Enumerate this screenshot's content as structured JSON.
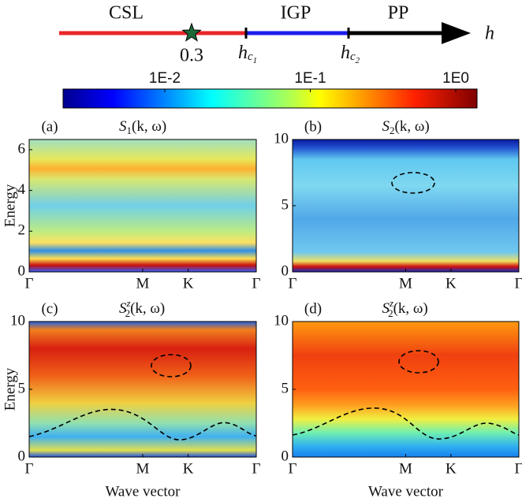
{
  "phase_diagram": {
    "segments": [
      {
        "label": "CSL",
        "color": "#e8262a"
      },
      {
        "label": "IGP",
        "color": "#1d1dee"
      },
      {
        "label": "PP",
        "color": "#000000"
      }
    ],
    "axis_label": "h",
    "marker_label": "0.3",
    "marker_color": "#1e6b3a",
    "boundaries": [
      [
        "h",
        "c",
        "1"
      ],
      [
        "h",
        "c",
        "2"
      ]
    ]
  },
  "chart_data": [
    {
      "type": "colorbar",
      "scale": "log",
      "xlim": [
        0.002,
        1.4
      ],
      "xticks": [
        {
          "value": 0.01,
          "label": "1E-2"
        },
        {
          "value": 0.1,
          "label": "1E-1"
        },
        {
          "value": 1,
          "label": "1E0"
        }
      ]
    },
    {
      "type": "heatmap",
      "panel_label": "(a)",
      "title": {
        "base": "S",
        "sub": "1",
        "args": "(k, ω)"
      },
      "ylabel": "Energy",
      "xlim": [
        0,
        1
      ],
      "xticks": [
        {
          "value": 0,
          "label": "Γ"
        },
        {
          "value": 0.5,
          "label": "M"
        },
        {
          "value": 0.7,
          "label": "K"
        },
        {
          "value": 1,
          "label": "Γ"
        }
      ],
      "ylim": [
        0,
        6.5
      ],
      "yticks": [
        0,
        2,
        4,
        6
      ]
    },
    {
      "type": "heatmap",
      "panel_label": "(b)",
      "title": {
        "base": "S",
        "sub": "2",
        "args": "(k, ω)"
      },
      "xlim": [
        0,
        1
      ],
      "xticks": [
        {
          "value": 0,
          "label": "Γ"
        },
        {
          "value": 0.5,
          "label": "M"
        },
        {
          "value": 0.7,
          "label": "K"
        },
        {
          "value": 1,
          "label": "Γ"
        }
      ],
      "ylim": [
        0,
        10
      ],
      "yticks": [
        0,
        5,
        10
      ]
    },
    {
      "type": "heatmap",
      "panel_label": "(c)",
      "title": {
        "base": "S",
        "sup": "z",
        "sub": "2",
        "args": "(k, ω)"
      },
      "ylabel": "Energy",
      "xlabel": "Wave vector",
      "xlim": [
        0,
        1
      ],
      "xticks": [
        {
          "value": 0,
          "label": "Γ"
        },
        {
          "value": 0.5,
          "label": "M"
        },
        {
          "value": 0.7,
          "label": "K"
        },
        {
          "value": 1,
          "label": "Γ"
        }
      ],
      "ylim": [
        0,
        10
      ],
      "yticks": [
        0,
        5,
        10
      ]
    },
    {
      "type": "heatmap",
      "panel_label": "(d)",
      "title": {
        "base": "S",
        "sup": "z",
        "sub": "2",
        "args": "(k, ω)"
      },
      "xlabel": "Wave vector",
      "xlim": [
        0,
        1
      ],
      "xticks": [
        {
          "value": 0,
          "label": "Γ"
        },
        {
          "value": 0.5,
          "label": "M"
        },
        {
          "value": 0.7,
          "label": "K"
        },
        {
          "value": 1,
          "label": "Γ"
        }
      ],
      "ylim": [
        0,
        10
      ],
      "yticks": [
        0,
        5,
        10
      ]
    }
  ]
}
